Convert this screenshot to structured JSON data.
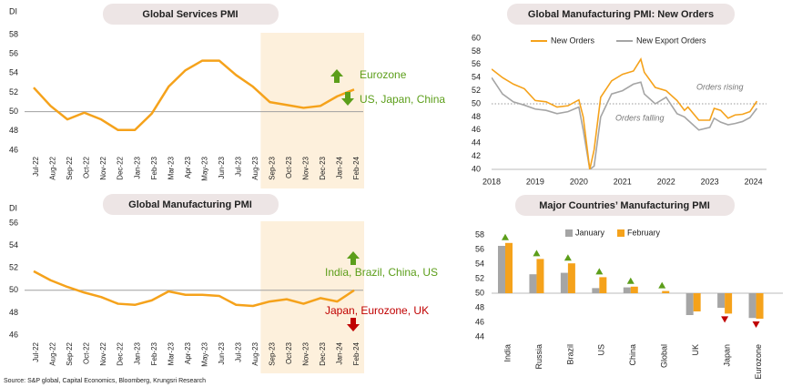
{
  "chart_data": [
    {
      "type": "line",
      "title": "Global Services PMI",
      "ylabel": "DI",
      "categories": [
        "Jul-22",
        "Aug-22",
        "Sep-22",
        "Oct-22",
        "Nov-22",
        "Dec-22",
        "Jan-23",
        "Feb-23",
        "Mar-23",
        "Apr-23",
        "May-23",
        "Jun-23",
        "Jul-23",
        "Aug-23",
        "Sep-23",
        "Oct-23",
        "Nov-23",
        "Dec-23",
        "Jan-24",
        "Feb-24"
      ],
      "series": [
        {
          "name": "Global Services PMI",
          "color": "#f5a21b",
          "values": [
            52.5,
            50.6,
            49.2,
            49.9,
            49.2,
            48.1,
            48.1,
            49.8,
            52.6,
            54.3,
            55.3,
            55.3,
            53.8,
            52.6,
            51.0,
            50.7,
            50.4,
            50.6,
            51.6,
            52.3
          ]
        }
      ],
      "ylim": [
        46,
        58
      ],
      "yticks": [
        46,
        48,
        50,
        52,
        54,
        56,
        58
      ],
      "hline": 50,
      "annotations": [
        "Eurozone",
        "US, Japan, China"
      ]
    },
    {
      "type": "line",
      "title": "Global Manufacturing PMI",
      "ylabel": "DI",
      "categories": [
        "Jul-22",
        "Aug-22",
        "Sep-22",
        "Oct-22",
        "Nov-22",
        "Dec-22",
        "Jan-23",
        "Feb-23",
        "Mar-23",
        "Apr-23",
        "May-23",
        "Jun-23",
        "Jul-23",
        "Aug-23",
        "Sep-23",
        "Oct-23",
        "Nov-23",
        "Dec-23",
        "Jan-24",
        "Feb-24"
      ],
      "series": [
        {
          "name": "Global Manufacturing PMI",
          "color": "#f5a21b",
          "values": [
            51.7,
            50.9,
            50.3,
            49.8,
            49.4,
            48.8,
            48.7,
            49.1,
            49.9,
            49.6,
            49.6,
            49.5,
            48.7,
            48.6,
            49.0,
            49.2,
            48.8,
            49.3,
            49.0,
            50.0
          ]
        }
      ],
      "ylim": [
        46,
        56
      ],
      "yticks": [
        46,
        48,
        50,
        52,
        54,
        56
      ],
      "hline": 50,
      "annotations": [
        "India, Brazil, China, US",
        "Japan, Eurozone, UK"
      ]
    },
    {
      "type": "line",
      "title": "Global Manufacturing PMI: New Orders",
      "x": [
        2018.0,
        2018.25,
        2018.5,
        2018.75,
        2019.0,
        2019.25,
        2019.5,
        2019.75,
        2020.0,
        2020.1,
        2020.25,
        2020.35,
        2020.5,
        2020.75,
        2021.0,
        2021.25,
        2021.42,
        2021.5,
        2021.75,
        2022.0,
        2022.25,
        2022.42,
        2022.5,
        2022.75,
        2023.0,
        2023.1,
        2023.25,
        2023.42,
        2023.58,
        2023.75,
        2023.92,
        2024.08
      ],
      "series": [
        {
          "name": "New Orders",
          "color": "#f5a21b",
          "values": [
            55.3,
            54.0,
            53.0,
            52.3,
            50.5,
            50.3,
            49.5,
            49.7,
            50.6,
            48.0,
            40,
            43.0,
            51.0,
            53.5,
            54.5,
            55.0,
            56.8,
            54.8,
            52.5,
            52.0,
            50.5,
            49.0,
            49.5,
            47.5,
            47.5,
            49.3,
            49.0,
            47.8,
            48.3,
            48.4,
            48.8,
            50.4
          ]
        },
        {
          "name": "New Export Orders",
          "color": "#a5a5a5",
          "values": [
            54.0,
            51.5,
            50.3,
            49.8,
            49.2,
            49.0,
            48.5,
            48.8,
            49.5,
            46.0,
            40,
            40.5,
            48.0,
            51.5,
            52.0,
            53.0,
            53.3,
            51.5,
            50.0,
            51.0,
            48.5,
            48.0,
            47.5,
            46.0,
            46.4,
            47.8,
            47.2,
            46.8,
            47.0,
            47.3,
            47.9,
            49.3
          ]
        }
      ],
      "xlim": [
        2018,
        2024.3
      ],
      "xticks": [
        2018,
        2019,
        2020,
        2021,
        2022,
        2023,
        2024
      ],
      "ylim": [
        40,
        60
      ],
      "yticks": [
        40,
        42,
        44,
        46,
        48,
        50,
        52,
        54,
        56,
        58,
        60
      ],
      "hline": 50,
      "annotations": [
        "Orders rising",
        "Orders falling"
      ]
    },
    {
      "type": "bar",
      "title": "Major Countries’ Manufacturing PMI",
      "categories": [
        "India",
        "Russia",
        "Brazil",
        "US",
        "China",
        "Global",
        "UK",
        "Japan",
        "Eurozone"
      ],
      "series": [
        {
          "name": "January",
          "color": "#a5a5a5",
          "values": [
            56.5,
            52.6,
            52.8,
            50.7,
            50.8,
            50.0,
            47.0,
            48.0,
            46.6
          ]
        },
        {
          "name": "February",
          "color": "#f5a21b",
          "values": [
            56.9,
            54.7,
            54.1,
            52.2,
            50.9,
            50.3,
            47.5,
            47.2,
            46.5
          ]
        }
      ],
      "ylim": [
        44,
        58
      ],
      "yticks": [
        44,
        46,
        48,
        50,
        52,
        54,
        56,
        58
      ],
      "baseline": 50
    },
    {
      "source": "Source: S&P global, Capital Economics, Bloomberg, Krungsri Research"
    }
  ]
}
